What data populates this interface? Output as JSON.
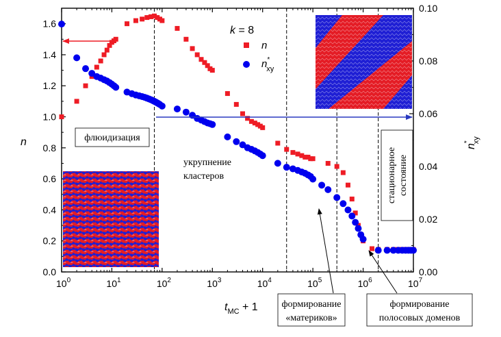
{
  "chart_data": {
    "type": "scatter",
    "x_scale": "log",
    "xlim": [
      1,
      10000000
    ],
    "ylim_left": [
      0,
      1.7
    ],
    "ylim_right": [
      0,
      0.1
    ],
    "x_ticks": [
      {
        "base": "10",
        "exp": "0"
      },
      {
        "base": "10",
        "exp": "1"
      },
      {
        "base": "10",
        "exp": "2"
      },
      {
        "base": "10",
        "exp": "3"
      },
      {
        "base": "10",
        "exp": "4"
      },
      {
        "base": "10",
        "exp": "5"
      },
      {
        "base": "10",
        "exp": "6"
      },
      {
        "base": "10",
        "exp": "7"
      }
    ],
    "y_left_ticks": [
      "0.0",
      "0.2",
      "0.4",
      "0.6",
      "0.8",
      "1.0",
      "1.2",
      "1.4",
      "1.6"
    ],
    "y_right_ticks": [
      "0.00",
      "0.02",
      "0.04",
      "0.06",
      "0.08",
      "0.10"
    ],
    "xlabel": {
      "t": "t",
      "sub": "MC",
      "rest": " + 1"
    },
    "ylabel_left": "n",
    "ylabel_right": {
      "n": "n",
      "sup": "*",
      "sub": "xy"
    },
    "legend": {
      "k_label": "k",
      "k_value": " = 8",
      "n_label": "n",
      "nxy_label": {
        "n": "n",
        "sup": "*",
        "sub": "xy"
      }
    },
    "colors": {
      "n": "#ee1c25",
      "nxy": "#0000ee",
      "arrow_n": "#ee1c25",
      "arrow_nxy": "#2a3ac0"
    },
    "vlines_x": [
      70,
      30000,
      300000,
      2000000
    ],
    "annotations": {
      "fluid": "флюидизация",
      "coarsening": [
        "укрупнение",
        "кластеров"
      ],
      "stationary": [
        "стационарное",
        "состояние"
      ],
      "continents": [
        "формирование",
        "«материков»"
      ],
      "stripes": [
        "формирование",
        "полосовых доменов"
      ]
    },
    "series": [
      {
        "name": "n",
        "axis": "left",
        "marker": "square",
        "x": [
          1,
          2,
          3,
          4,
          5,
          6,
          7,
          8,
          9,
          10,
          11,
          12,
          20,
          30,
          40,
          50,
          60,
          70,
          80,
          90,
          100,
          200,
          300,
          400,
          500,
          600,
          700,
          800,
          900,
          1000,
          2000,
          3000,
          4000,
          5000,
          6000,
          7000,
          8000,
          9000,
          10000,
          20000,
          30000,
          40000,
          50000,
          60000,
          70000,
          80000,
          90000,
          100000,
          200000,
          300000,
          400000,
          500000,
          600000,
          700000,
          800000,
          900000,
          1000000,
          1500000,
          2000000,
          3000000,
          4000000,
          5000000,
          6000000,
          7000000,
          8000000,
          9000000,
          10000000
        ],
        "y": [
          1.0,
          1.1,
          1.2,
          1.26,
          1.32,
          1.36,
          1.4,
          1.43,
          1.46,
          1.48,
          1.49,
          1.5,
          1.6,
          1.62,
          1.63,
          1.64,
          1.645,
          1.65,
          1.64,
          1.63,
          1.62,
          1.57,
          1.5,
          1.44,
          1.4,
          1.37,
          1.35,
          1.33,
          1.31,
          1.3,
          1.15,
          1.08,
          1.02,
          0.99,
          0.97,
          0.96,
          0.95,
          0.94,
          0.93,
          0.83,
          0.79,
          0.77,
          0.76,
          0.75,
          0.74,
          0.74,
          0.73,
          0.73,
          0.7,
          0.68,
          0.64,
          0.56,
          0.47,
          0.38,
          0.3,
          0.24,
          0.2,
          0.15,
          0.145,
          0.145,
          0.145,
          0.145,
          0.145,
          0.145,
          0.145,
          0.145,
          0.145
        ]
      },
      {
        "name": "n*xy",
        "axis": "right",
        "marker": "circle",
        "x": [
          1,
          2,
          3,
          4,
          5,
          6,
          7,
          8,
          9,
          10,
          11,
          12,
          20,
          25,
          30,
          35,
          40,
          45,
          50,
          55,
          60,
          65,
          70,
          75,
          80,
          85,
          90,
          100,
          200,
          300,
          400,
          500,
          600,
          700,
          800,
          900,
          1000,
          2000,
          3000,
          4000,
          5000,
          6000,
          7000,
          8000,
          9000,
          10000,
          20000,
          30000,
          40000,
          50000,
          60000,
          70000,
          80000,
          90000,
          100000,
          150000,
          200000,
          300000,
          400000,
          500000,
          600000,
          700000,
          800000,
          900000,
          1000000,
          2000000,
          3000000,
          4000000,
          5000000,
          6000000,
          7000000,
          8000000,
          9000000,
          10000000
        ],
        "y": [
          0.094,
          0.0812,
          0.0771,
          0.0753,
          0.0741,
          0.0735,
          0.0729,
          0.0724,
          0.0718,
          0.0712,
          0.0706,
          0.07,
          0.0682,
          0.0676,
          0.0671,
          0.0668,
          0.0665,
          0.0662,
          0.0659,
          0.0656,
          0.0653,
          0.065,
          0.0647,
          0.0644,
          0.0641,
          0.0638,
          0.0635,
          0.0629,
          0.0618,
          0.0606,
          0.0594,
          0.0582,
          0.0576,
          0.057,
          0.0565,
          0.0562,
          0.0559,
          0.0512,
          0.0494,
          0.0482,
          0.0471,
          0.0465,
          0.0459,
          0.0453,
          0.0447,
          0.0441,
          0.0412,
          0.0397,
          0.0391,
          0.0385,
          0.0379,
          0.0374,
          0.0368,
          0.0362,
          0.0352,
          0.0329,
          0.0312,
          0.0282,
          0.0259,
          0.0235,
          0.0212,
          0.0188,
          0.0165,
          0.0141,
          0.0124,
          0.0082,
          0.0082,
          0.0082,
          0.0082,
          0.0082,
          0.0082,
          0.0082,
          0.0082,
          0.0082
        ]
      }
    ]
  }
}
